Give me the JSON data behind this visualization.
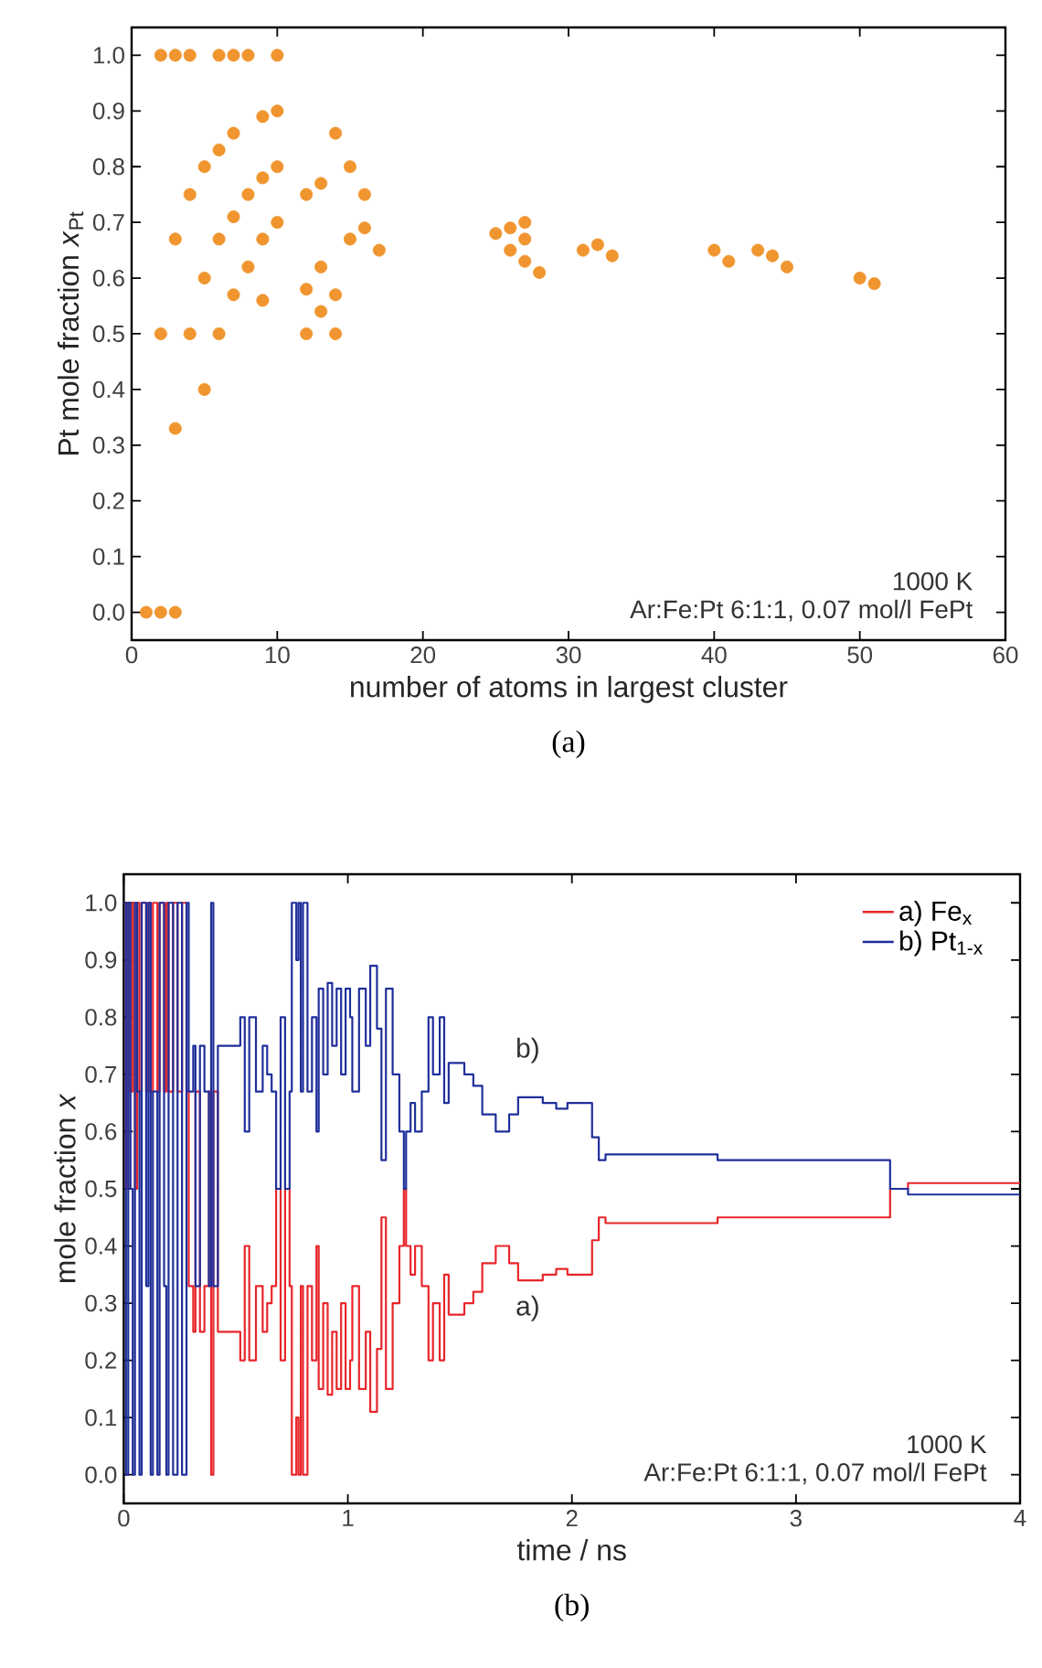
{
  "chart_data": [
    {
      "type": "scatter",
      "xlabel": "number of atoms in largest cluster",
      "ylabel": "Pt mole fraction *x*$_{Pt}$",
      "color": "#f0952f",
      "marker": "circle",
      "x": [
        1,
        2,
        3,
        2,
        3,
        4,
        6,
        7,
        8,
        10,
        2,
        3,
        3,
        4,
        4,
        5,
        5,
        5,
        6,
        6,
        6,
        7,
        7,
        7,
        8,
        8,
        9,
        9,
        9,
        9,
        10,
        10,
        10,
        12,
        12,
        12,
        13,
        13,
        13,
        14,
        14,
        14,
        15,
        15,
        16,
        16,
        17,
        25,
        26,
        26,
        27,
        27,
        27,
        28,
        31,
        32,
        33,
        40,
        41,
        43,
        44,
        45,
        50,
        51
      ],
      "values": [
        0,
        0,
        0,
        1,
        1,
        1,
        1,
        1,
        1,
        1,
        0.5,
        0.33,
        0.67,
        0.5,
        0.75,
        0.4,
        0.6,
        0.8,
        0.5,
        0.67,
        0.83,
        0.57,
        0.71,
        0.86,
        0.62,
        0.75,
        0.56,
        0.67,
        0.78,
        0.89,
        0.7,
        0.8,
        0.9,
        0.5,
        0.58,
        0.75,
        0.54,
        0.62,
        0.77,
        0.5,
        0.57,
        0.86,
        0.67,
        0.8,
        0.69,
        0.75,
        0.65,
        0.68,
        0.65,
        0.69,
        0.63,
        0.67,
        0.7,
        0.61,
        0.65,
        0.66,
        0.64,
        0.65,
        0.63,
        0.65,
        0.64,
        0.62,
        0.6,
        0.59
      ],
      "xlim": [
        0,
        60
      ],
      "ylim": [
        -0.05,
        1.05
      ],
      "xticks": [
        0,
        10,
        20,
        30,
        40,
        50,
        60
      ],
      "yticks": [
        {
          "value": 0,
          "label": "0.0"
        },
        {
          "value": 0.1,
          "label": "0.1"
        },
        {
          "value": 0.2,
          "label": "0.2"
        },
        {
          "value": 0.3,
          "label": "0.3"
        },
        {
          "value": 0.4,
          "label": "0.4"
        },
        {
          "value": 0.5,
          "label": "0.5"
        },
        {
          "value": 0.6,
          "label": "0.6"
        },
        {
          "value": 0.7,
          "label": "0.7"
        },
        {
          "value": 0.8,
          "label": "0.8"
        },
        {
          "value": 0.9,
          "label": "0.9"
        },
        {
          "value": 1,
          "label": "1.0"
        }
      ],
      "annotations": [
        "1000 K",
        "Ar:Fe:Pt 6:1:1, 0.07 mol/l FePt",
        "(a)"
      ]
    },
    {
      "type": "step",
      "xlabel": "time / ns",
      "ylabel": "mole fraction *x*",
      "legend": "top right",
      "line_style": "solid",
      "x": [
        0,
        0.01,
        0.02,
        0.03,
        0.04,
        0.05,
        0.06,
        0.07,
        0.08,
        0.1,
        0.11,
        0.12,
        0.13,
        0.15,
        0.16,
        0.18,
        0.19,
        0.2,
        0.22,
        0.24,
        0.26,
        0.28,
        0.29,
        0.31,
        0.32,
        0.34,
        0.36,
        0.38,
        0.39,
        0.4,
        0.42,
        0.52,
        0.54,
        0.56,
        0.59,
        0.62,
        0.64,
        0.66,
        0.68,
        0.7,
        0.72,
        0.74,
        0.75,
        0.77,
        0.78,
        0.79,
        0.8,
        0.82,
        0.84,
        0.86,
        0.87,
        0.89,
        0.91,
        0.93,
        0.95,
        0.97,
        0.99,
        1.01,
        1.02,
        1.05,
        1.08,
        1.1,
        1.13,
        1.15,
        1.17,
        1.2,
        1.23,
        1.25,
        1.26,
        1.28,
        1.3,
        1.33,
        1.36,
        1.38,
        1.41,
        1.43,
        1.45,
        1.52,
        1.56,
        1.6,
        1.66,
        1.72,
        1.76,
        1.87,
        1.93,
        1.98,
        2.09,
        2.12,
        2.15,
        2.3,
        2.49,
        2.65,
        2.8,
        2.97,
        3.42,
        3.5,
        3.55,
        4
      ],
      "series": [
        {
          "name": "a) Fe$_{x}$",
          "color": "#e8262a",
          "values": [
            1,
            0.5,
            1,
            0.67,
            1,
            0.5,
            1,
            0.67,
            1,
            0.67,
            1,
            0.67,
            1,
            0.67,
            1,
            0.67,
            1,
            0.67,
            1,
            0.67,
            1,
            0.67,
            0.33,
            0.25,
            0.67,
            0.25,
            0.33,
            0.67,
            0,
            0.67,
            0.25,
            0.2,
            0.4,
            0.2,
            0.33,
            0.25,
            0.3,
            0.33,
            0.5,
            0.2,
            0.5,
            0.33,
            0,
            0.1,
            0,
            0.33,
            0,
            0.33,
            0.2,
            0.4,
            0.15,
            0.3,
            0.14,
            0.25,
            0.15,
            0.3,
            0.15,
            0.2,
            0.33,
            0.15,
            0.25,
            0.11,
            0.22,
            0.45,
            0.15,
            0.3,
            0.4,
            0.5,
            0.4,
            0.35,
            0.4,
            0.33,
            0.2,
            0.3,
            0.2,
            0.35,
            0.28,
            0.3,
            0.32,
            0.37,
            0.4,
            0.37,
            0.34,
            0.35,
            0.36,
            0.35,
            0.41,
            0.45,
            0.44,
            0.44,
            0.44,
            0.45,
            0.45,
            0.45,
            0.5,
            0.51,
            0.51,
            0.51
          ]
        },
        {
          "name": "b) Pt$_{1-x}$",
          "color": "#1f2f9a",
          "values": [
            1,
            0,
            1,
            0.5,
            0,
            1,
            0.67,
            0,
            1,
            0.33,
            1,
            0,
            0.67,
            0,
            1,
            0.33,
            0,
            1,
            0,
            1,
            0,
            1,
            0.67,
            0.75,
            0.33,
            0.75,
            0.67,
            0.33,
            1,
            0.33,
            0.75,
            0.8,
            0.6,
            0.8,
            0.67,
            0.75,
            0.7,
            0.67,
            0.5,
            0.8,
            0.5,
            0.67,
            1,
            0.9,
            1,
            0.67,
            1,
            0.67,
            0.8,
            0.6,
            0.85,
            0.7,
            0.86,
            0.75,
            0.85,
            0.7,
            0.85,
            0.8,
            0.67,
            0.85,
            0.75,
            0.89,
            0.78,
            0.55,
            0.85,
            0.7,
            0.6,
            0.5,
            0.6,
            0.65,
            0.6,
            0.67,
            0.8,
            0.7,
            0.8,
            0.65,
            0.72,
            0.7,
            0.68,
            0.63,
            0.6,
            0.63,
            0.66,
            0.65,
            0.64,
            0.65,
            0.59,
            0.55,
            0.56,
            0.56,
            0.56,
            0.55,
            0.55,
            0.55,
            0.5,
            0.49,
            0.49,
            0.49
          ]
        }
      ],
      "xlim": [
        0,
        4
      ],
      "ylim": [
        -0.05,
        1.05
      ],
      "xticks": [
        0,
        1,
        2,
        3,
        4
      ],
      "yticks": [
        {
          "value": 0,
          "label": "0.0"
        },
        {
          "value": 0.1,
          "label": "0.1"
        },
        {
          "value": 0.2,
          "label": "0.2"
        },
        {
          "value": 0.3,
          "label": "0.3"
        },
        {
          "value": 0.4,
          "label": "0.4"
        },
        {
          "value": 0.5,
          "label": "0.5"
        },
        {
          "value": 0.6,
          "label": "0.6"
        },
        {
          "value": 0.7,
          "label": "0.7"
        },
        {
          "value": 0.8,
          "label": "0.8"
        },
        {
          "value": 0.9,
          "label": "0.9"
        },
        {
          "value": 1,
          "label": "1.0"
        }
      ],
      "annotations": [
        "b)",
        "a)",
        "1000 K",
        "Ar:Fe:Pt 6:1:1, 0.07 mol/l FePt",
        "(b)"
      ]
    }
  ]
}
